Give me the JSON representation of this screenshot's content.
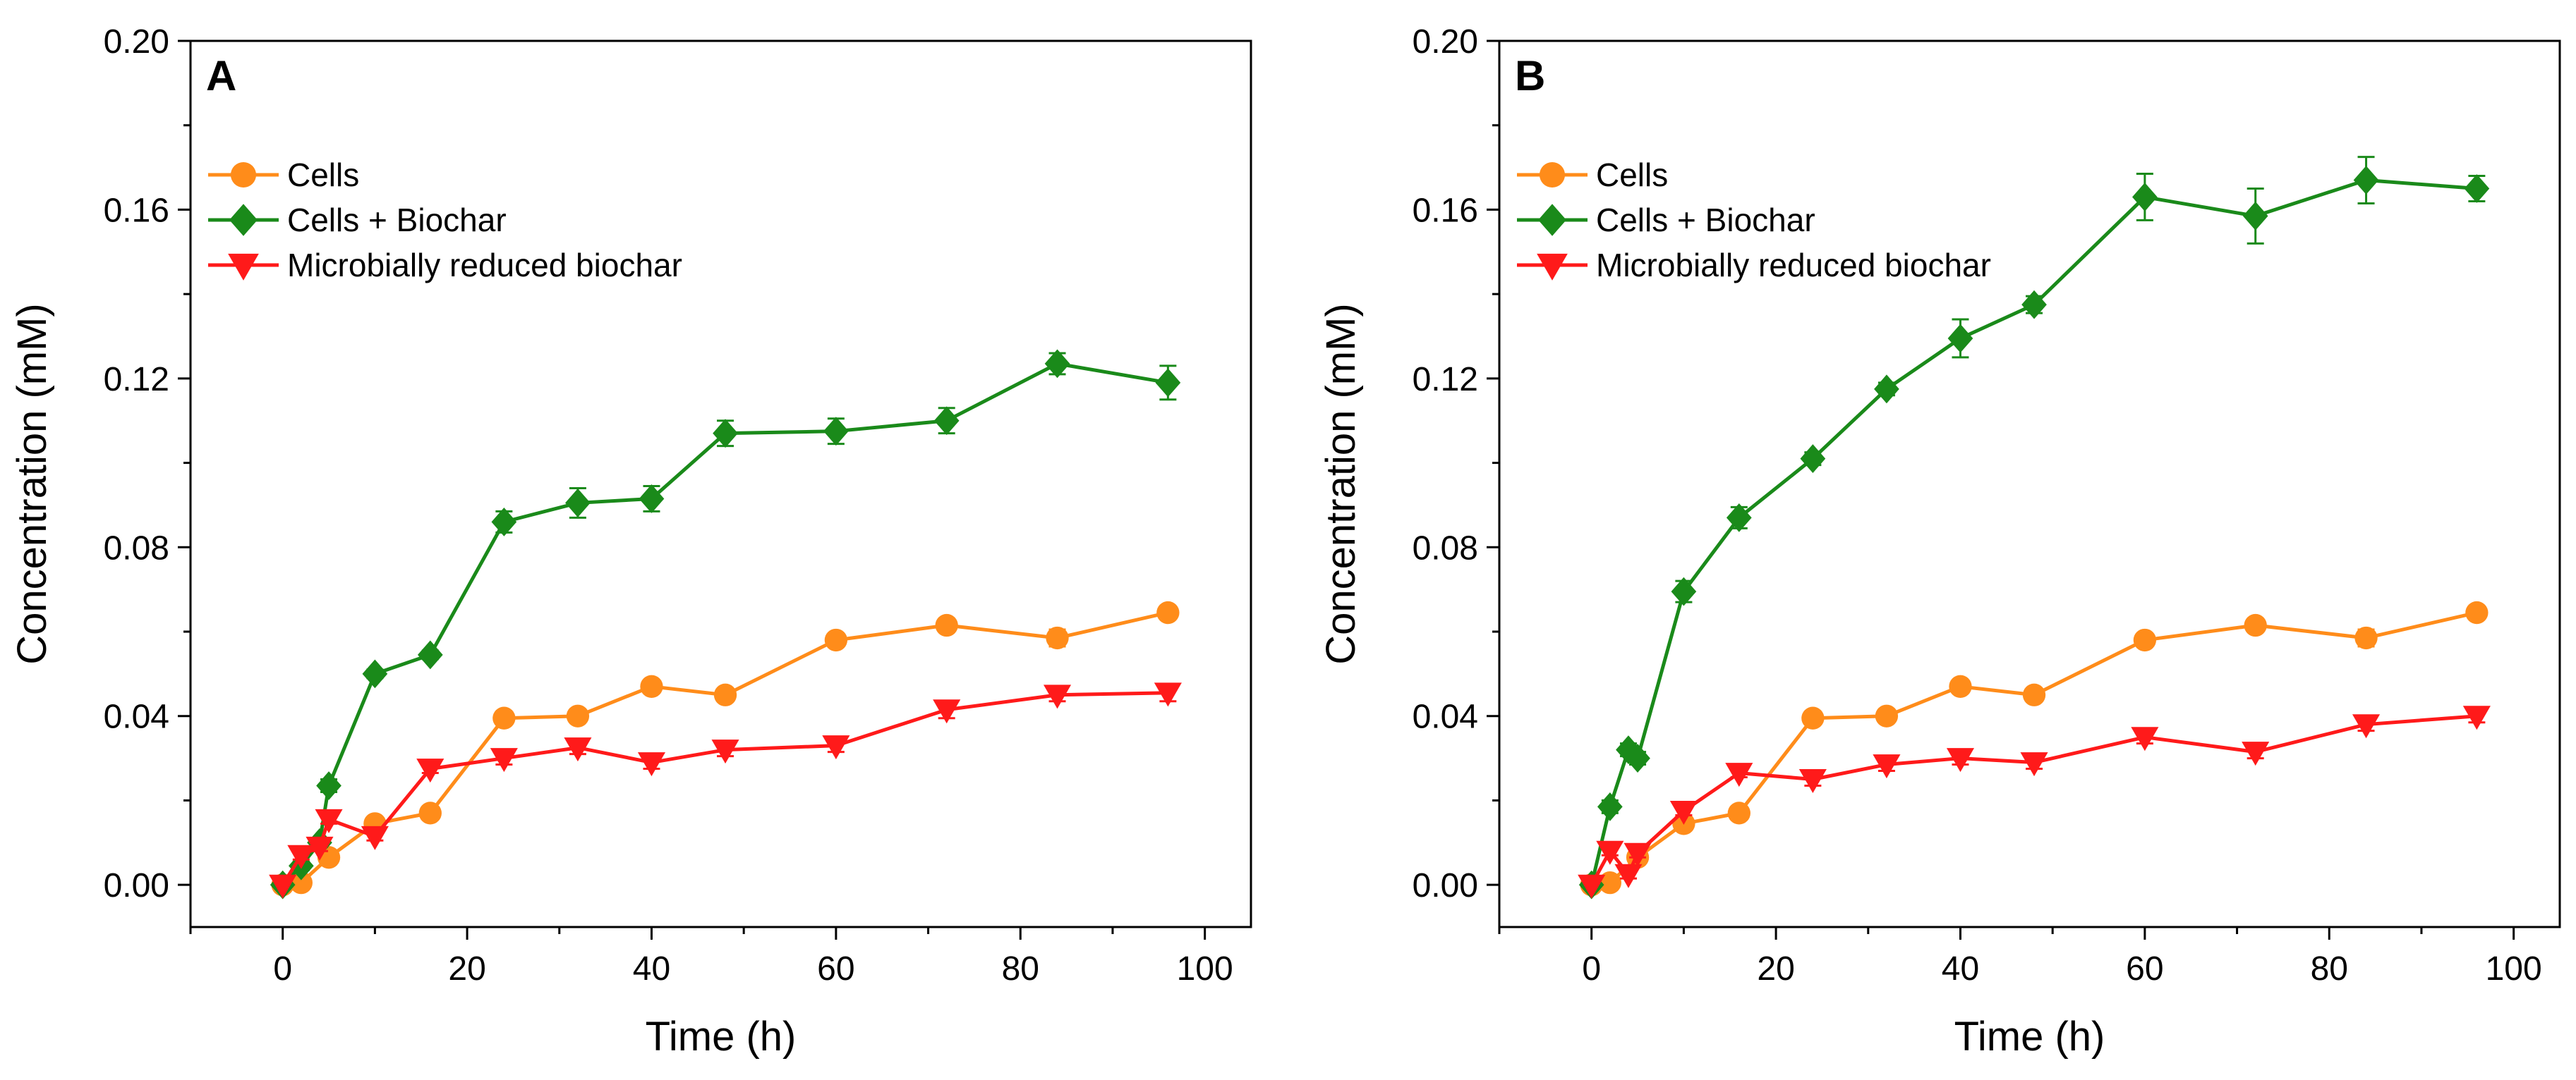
{
  "chart_data": [
    {
      "panel": "A",
      "type": "line",
      "xlabel": "Time (h)",
      "ylabel": "Concentration (mM)",
      "xlim": [
        -10,
        105
      ],
      "ylim": [
        -0.01,
        0.2
      ],
      "xticks": [
        0,
        20,
        40,
        60,
        80,
        100
      ],
      "xtick_labels": [
        "0",
        "20",
        "40",
        "60",
        "80",
        "100"
      ],
      "yticks": [
        0.0,
        0.04,
        0.08,
        0.12,
        0.16,
        0.2
      ],
      "ytick_labels": [
        "0.00",
        "0.04",
        "0.08",
        "0.12",
        "0.16",
        "0.20"
      ],
      "legend_position": "upper-left",
      "series": [
        {
          "name": "Cells",
          "color": "#FF8C1A",
          "marker": "circle",
          "x": [
            0,
            2,
            5,
            10,
            16,
            24,
            32,
            40,
            48,
            60,
            72,
            84,
            96
          ],
          "y": [
            0.0,
            0.0005,
            0.0065,
            0.0145,
            0.017,
            0.0395,
            0.04,
            0.047,
            0.045,
            0.058,
            0.0615,
            0.0585,
            0.0645
          ],
          "err": [
            0,
            0.0005,
            0.001,
            0.001,
            0.001,
            0.001,
            0.001,
            0.001,
            0.001,
            0.0015,
            0.0012,
            0.002,
            0.0015
          ]
        },
        {
          "name": "Cells + Biochar",
          "color": "#1A8A1A",
          "marker": "diamond",
          "x": [
            0,
            2,
            4,
            5,
            10,
            16,
            24,
            32,
            40,
            48,
            60,
            72,
            84,
            96
          ],
          "y": [
            0.0,
            0.0045,
            0.01,
            0.0235,
            0.05,
            0.0545,
            0.086,
            0.0905,
            0.0915,
            0.107,
            0.1075,
            0.11,
            0.1235,
            0.119
          ],
          "err": [
            0,
            0.001,
            0.001,
            0.0015,
            0.001,
            0.001,
            0.0025,
            0.0035,
            0.003,
            0.003,
            0.003,
            0.003,
            0.0025,
            0.004
          ]
        },
        {
          "name": "Microbially reduced biochar",
          "color": "#FF1A1A",
          "marker": "triangle-down",
          "x": [
            0,
            2,
            4,
            5,
            10,
            16,
            24,
            32,
            40,
            48,
            60,
            72,
            84,
            96
          ],
          "y": [
            0.0,
            0.007,
            0.009,
            0.0155,
            0.0115,
            0.0275,
            0.03,
            0.0325,
            0.029,
            0.032,
            0.033,
            0.0415,
            0.045,
            0.0455
          ],
          "err": [
            0,
            0.001,
            0.001,
            0.001,
            0.001,
            0.001,
            0.0015,
            0.0015,
            0.0015,
            0.0015,
            0.0015,
            0.002,
            0.0015,
            0.002
          ]
        }
      ]
    },
    {
      "panel": "B",
      "type": "line",
      "xlabel": "Time (h)",
      "ylabel": "Concentration (mM)",
      "xlim": [
        -10,
        105
      ],
      "ylim": [
        -0.01,
        0.2
      ],
      "xticks": [
        0,
        20,
        40,
        60,
        80,
        100
      ],
      "xtick_labels": [
        "0",
        "20",
        "40",
        "60",
        "80",
        "100"
      ],
      "yticks": [
        0.0,
        0.04,
        0.08,
        0.12,
        0.16,
        0.2
      ],
      "ytick_labels": [
        "0.00",
        "0.04",
        "0.08",
        "0.12",
        "0.16",
        "0.20"
      ],
      "legend_position": "upper-left",
      "series": [
        {
          "name": "Cells",
          "color": "#FF8C1A",
          "marker": "circle",
          "x": [
            0,
            2,
            5,
            10,
            16,
            24,
            32,
            40,
            48,
            60,
            72,
            84,
            96
          ],
          "y": [
            0.0,
            0.0005,
            0.0065,
            0.0145,
            0.017,
            0.0395,
            0.04,
            0.047,
            0.045,
            0.058,
            0.0615,
            0.0585,
            0.0645
          ],
          "err": [
            0,
            0.0005,
            0.001,
            0.001,
            0.001,
            0.001,
            0.001,
            0.001,
            0.001,
            0.0015,
            0.0012,
            0.002,
            0.0015
          ]
        },
        {
          "name": "Cells + Biochar",
          "color": "#1A8A1A",
          "marker": "diamond",
          "x": [
            0,
            2,
            4,
            5,
            10,
            16,
            24,
            32,
            40,
            48,
            60,
            72,
            84,
            96
          ],
          "y": [
            0.0,
            0.0185,
            0.032,
            0.03,
            0.0695,
            0.087,
            0.101,
            0.1175,
            0.1295,
            0.1375,
            0.163,
            0.1585,
            0.167,
            0.165
          ],
          "err": [
            0,
            0.0015,
            0.0015,
            0.0015,
            0.0025,
            0.0025,
            0.0015,
            0.0015,
            0.0045,
            0.002,
            0.0055,
            0.0065,
            0.0055,
            0.003
          ]
        },
        {
          "name": "Microbially reduced biochar",
          "color": "#FF1A1A",
          "marker": "triangle-down",
          "x": [
            0,
            2,
            4,
            5,
            10,
            16,
            24,
            32,
            40,
            48,
            60,
            72,
            84,
            96
          ],
          "y": [
            0.0,
            0.008,
            0.0025,
            0.0075,
            0.0175,
            0.0265,
            0.025,
            0.0285,
            0.03,
            0.029,
            0.035,
            0.0315,
            0.038,
            0.04
          ],
          "err": [
            0,
            0.001,
            0.001,
            0.001,
            0.001,
            0.001,
            0.0015,
            0.0015,
            0.0015,
            0.0015,
            0.0015,
            0.0015,
            0.0015,
            0.0015
          ]
        }
      ]
    }
  ]
}
